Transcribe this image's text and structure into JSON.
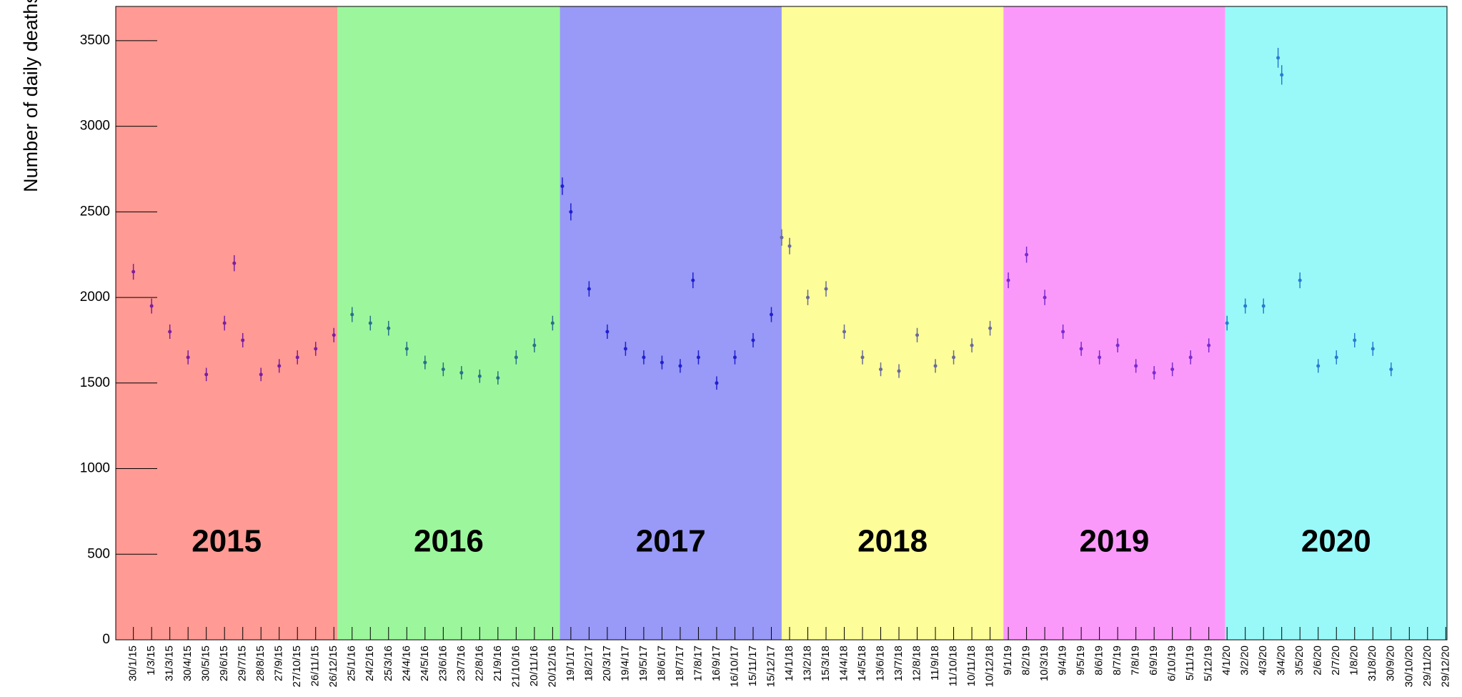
{
  "chart_data": {
    "type": "errorbar",
    "y_label": "Number of daily deaths",
    "xlim": [
      "1/1/15",
      "31/12/20"
    ],
    "ylim": [
      0,
      3700
    ],
    "yticks": [
      0,
      500,
      1000,
      1500,
      2000,
      2500,
      3000,
      3500
    ],
    "xticks": [
      "30/1/15",
      "1/3/15",
      "31/3/15",
      "30/4/15",
      "30/5/15",
      "29/6/15",
      "29/7/15",
      "28/8/15",
      "27/9/15",
      "27/10/15",
      "26/11/15",
      "26/12/15",
      "25/1/16",
      "24/2/16",
      "25/3/16",
      "24/4/16",
      "24/5/16",
      "23/6/16",
      "23/7/16",
      "22/8/16",
      "21/9/16",
      "21/10/16",
      "20/11/16",
      "20/12/16",
      "19/1/17",
      "18/2/17",
      "20/3/17",
      "19/4/17",
      "19/5/17",
      "18/6/17",
      "18/7/17",
      "17/8/17",
      "16/9/17",
      "16/10/17",
      "15/11/17",
      "15/12/17",
      "14/1/18",
      "13/2/18",
      "15/3/18",
      "14/4/18",
      "14/5/18",
      "13/6/18",
      "13/7/18",
      "12/8/18",
      "11/9/18",
      "11/10/18",
      "10/11/18",
      "10/12/18",
      "9/1/19",
      "8/2/19",
      "10/3/19",
      "9/4/19",
      "9/5/19",
      "8/6/19",
      "8/7/19",
      "7/8/19",
      "6/9/19",
      "6/10/19",
      "5/11/19",
      "5/12/19",
      "4/1/20",
      "3/2/20",
      "4/3/20",
      "3/4/20",
      "3/5/20",
      "2/6/20",
      "2/7/20",
      "1/8/20",
      "31/8/20",
      "30/9/20",
      "30/10/20",
      "29/11/20",
      "29/12/20"
    ],
    "series": [
      {
        "name": "2015",
        "color": "#7a1fa0",
        "band_color": "#ff9a94",
        "x": [
          "30/1/15",
          "1/3/15",
          "31/3/15",
          "30/4/15",
          "30/5/15",
          "29/6/15",
          "15/7/15",
          "29/7/15",
          "28/8/15",
          "27/9/15",
          "27/10/15",
          "26/11/15",
          "26/12/15"
        ],
        "values": [
          2150,
          1950,
          1800,
          1650,
          1550,
          1850,
          2200,
          1750,
          1550,
          1600,
          1650,
          1700,
          1780
        ],
        "errors": [
          46,
          44,
          42,
          41,
          39,
          43,
          47,
          42,
          39,
          40,
          41,
          41,
          42
        ]
      },
      {
        "name": "2016",
        "color": "#2a6f8a",
        "band_color": "#9cf79c",
        "x": [
          "25/1/16",
          "24/2/16",
          "25/3/16",
          "24/4/16",
          "24/5/16",
          "23/6/16",
          "23/7/16",
          "22/8/16",
          "21/9/16",
          "21/10/16",
          "20/11/16",
          "20/12/16"
        ],
        "values": [
          1900,
          1850,
          1820,
          1700,
          1620,
          1580,
          1560,
          1540,
          1530,
          1650,
          1720,
          1850
        ],
        "errors": [
          44,
          43,
          43,
          41,
          40,
          40,
          39,
          39,
          39,
          41,
          41,
          43
        ]
      },
      {
        "name": "2017",
        "color": "#2020d0",
        "band_color": "#9999f7",
        "x": [
          "5/1/17",
          "19/1/17",
          "18/2/17",
          "20/3/17",
          "19/4/17",
          "19/5/17",
          "18/6/17",
          "18/7/17",
          "8/8/17",
          "17/8/17",
          "16/9/17",
          "16/10/17",
          "15/11/17",
          "15/12/17"
        ],
        "values": [
          2650,
          2500,
          2050,
          1800,
          1700,
          1650,
          1620,
          1600,
          2100,
          1650,
          1500,
          1650,
          1750,
          1900
        ],
        "errors": [
          51,
          50,
          45,
          42,
          41,
          41,
          40,
          40,
          46,
          41,
          39,
          41,
          42,
          44
        ]
      },
      {
        "name": "2018",
        "color": "#6a6a9a",
        "band_color": "#fdfd99",
        "x": [
          "1/1/18",
          "14/1/18",
          "13/2/18",
          "15/3/18",
          "14/4/18",
          "14/5/18",
          "13/6/18",
          "13/7/18",
          "12/8/18",
          "11/9/18",
          "11/10/18",
          "10/11/18",
          "10/12/18"
        ],
        "values": [
          2350,
          2300,
          2000,
          2050,
          1800,
          1650,
          1580,
          1570,
          1780,
          1600,
          1650,
          1720,
          1820
        ],
        "errors": [
          48,
          48,
          45,
          45,
          42,
          41,
          40,
          40,
          42,
          40,
          41,
          41,
          43
        ]
      },
      {
        "name": "2019",
        "color": "#7a2bd0",
        "band_color": "#fb99fb",
        "x": [
          "9/1/19",
          "8/2/19",
          "10/3/19",
          "9/4/19",
          "9/5/19",
          "8/6/19",
          "8/7/19",
          "7/8/19",
          "6/9/19",
          "6/10/19",
          "5/11/19",
          "5/12/19"
        ],
        "values": [
          2100,
          2250,
          2000,
          1800,
          1700,
          1650,
          1720,
          1600,
          1560,
          1580,
          1650,
          1720
        ],
        "errors": [
          46,
          47,
          45,
          42,
          41,
          41,
          41,
          40,
          39,
          40,
          41,
          41
        ]
      },
      {
        "name": "2020",
        "color": "#2a7ad0",
        "band_color": "#99f9f9",
        "x": [
          "4/1/20",
          "3/2/20",
          "4/3/20",
          "28/3/20",
          "3/4/20",
          "3/5/20",
          "2/6/20",
          "2/7/20",
          "1/8/20",
          "31/8/20",
          "30/9/20"
        ],
        "values": [
          1850,
          1950,
          1950,
          3400,
          3300,
          2100,
          1600,
          1650,
          1750,
          1700,
          1580
        ],
        "errors": [
          43,
          44,
          44,
          58,
          57,
          46,
          40,
          41,
          42,
          41,
          40
        ]
      }
    ]
  }
}
